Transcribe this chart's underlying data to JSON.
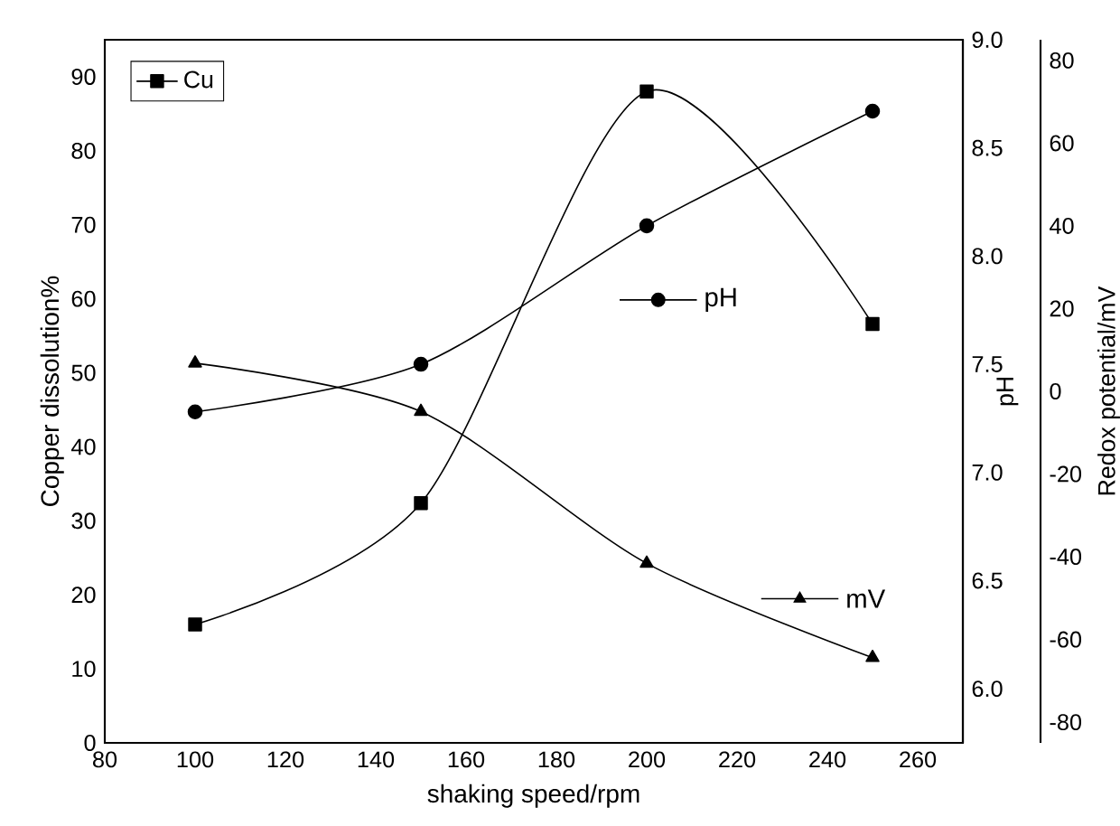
{
  "chart_data": {
    "type": "line",
    "xlabel": "shaking speed/rpm",
    "ylabel": "Copper dissolution%",
    "y2label": "pH",
    "y3label": "Redox potential/mV",
    "x": [
      100,
      150,
      200,
      250
    ],
    "xlim": [
      80,
      270
    ],
    "xticks": [
      80,
      100,
      120,
      140,
      160,
      180,
      200,
      220,
      240,
      260
    ],
    "ylim": [
      0,
      95
    ],
    "yticks": [
      0,
      10,
      20,
      30,
      40,
      50,
      60,
      70,
      80,
      90
    ],
    "y2lim": [
      5.75,
      9.0
    ],
    "y2ticks": [
      {
        "value": 6,
        "label": "6.0"
      },
      {
        "value": 6.5,
        "label": "6.5"
      },
      {
        "value": 7,
        "label": "7.0"
      },
      {
        "value": 7.5,
        "label": "7.5"
      },
      {
        "value": 8,
        "label": "8.0"
      },
      {
        "value": 8.5,
        "label": "8.5"
      },
      {
        "value": 9,
        "label": "9.0"
      }
    ],
    "y3lim": [
      -85,
      85
    ],
    "y3ticks": [
      -80,
      -60,
      -40,
      -20,
      0,
      20,
      40,
      60,
      80
    ],
    "legend": "top left",
    "grid": false,
    "line_style": "solid",
    "series": [
      {
        "name": "Cu",
        "color": "#000000",
        "marker": "square",
        "values": [
          16,
          32.4,
          88,
          56.6
        ]
      },
      {
        "name": "pH",
        "color": "#000000",
        "marker": "circle",
        "axis": "y2",
        "values": [
          7.28,
          7.5,
          8.14,
          8.67
        ]
      },
      {
        "name": "mV",
        "color": "#000000",
        "marker": "triangle",
        "axis": "y3",
        "values": [
          6.8,
          -4.9,
          -41.6,
          -64.4
        ]
      }
    ]
  }
}
